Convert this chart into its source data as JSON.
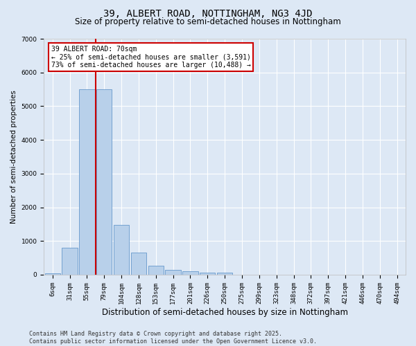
{
  "title": "39, ALBERT ROAD, NOTTINGHAM, NG3 4JD",
  "subtitle": "Size of property relative to semi-detached houses in Nottingham",
  "xlabel": "Distribution of semi-detached houses by size in Nottingham",
  "ylabel": "Number of semi-detached properties",
  "categories": [
    "6sqm",
    "31sqm",
    "55sqm",
    "79sqm",
    "104sqm",
    "128sqm",
    "153sqm",
    "177sqm",
    "201sqm",
    "226sqm",
    "250sqm",
    "275sqm",
    "299sqm",
    "323sqm",
    "348sqm",
    "372sqm",
    "397sqm",
    "421sqm",
    "446sqm",
    "470sqm",
    "494sqm"
  ],
  "values": [
    50,
    800,
    5500,
    5500,
    1480,
    650,
    270,
    145,
    95,
    70,
    60,
    0,
    0,
    0,
    0,
    0,
    0,
    0,
    0,
    0,
    0
  ],
  "bar_color": "#b8d0ea",
  "bar_edge_color": "#6699cc",
  "bg_color": "#dde8f5",
  "grid_color": "#ffffff",
  "vline_x_index": 2.5,
  "property_sqm": 70,
  "pct_smaller": 25,
  "count_smaller": 3591,
  "pct_larger": 73,
  "count_larger": 10488,
  "ann_box_edge_color": "#cc0000",
  "vline_color": "#cc0000",
  "ylim": [
    0,
    7000
  ],
  "yticks": [
    0,
    1000,
    2000,
    3000,
    4000,
    5000,
    6000,
    7000
  ],
  "footer_line1": "Contains HM Land Registry data © Crown copyright and database right 2025.",
  "footer_line2": "Contains public sector information licensed under the Open Government Licence v3.0.",
  "title_fontsize": 10,
  "subtitle_fontsize": 8.5,
  "xlabel_fontsize": 8.5,
  "ylabel_fontsize": 7.5,
  "tick_fontsize": 6.5,
  "ann_fontsize": 7,
  "footer_fontsize": 6
}
